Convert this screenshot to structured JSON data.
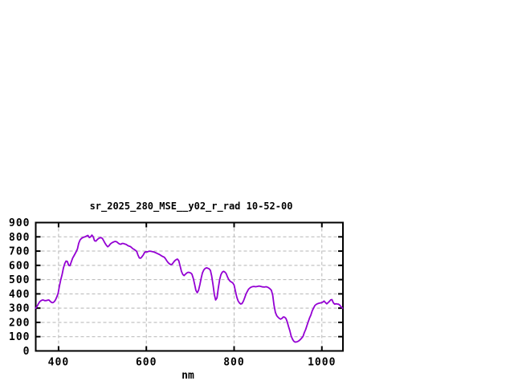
{
  "window": {
    "background": "#ffffff"
  },
  "chart_data": {
    "type": "line",
    "title": "sr_2025_280_MSE__y02_r_rad 10-52-00",
    "xlabel": "nm",
    "xlim": [
      348,
      1048
    ],
    "ylim": [
      0,
      900
    ],
    "xticks": [
      400,
      600,
      800,
      1000
    ],
    "yticks": [
      0,
      100,
      200,
      300,
      400,
      500,
      600,
      700,
      800,
      900
    ],
    "grid": true,
    "legend": "none",
    "axis_color": "#000000",
    "grid_color": "#b5b5b5",
    "line_color": "#9400d3",
    "series": [
      {
        "name": "sr_2025_280_MSE__y02_r_rad",
        "points": [
          [
            348,
            300
          ],
          [
            351,
            312
          ],
          [
            354,
            330
          ],
          [
            357,
            345
          ],
          [
            360,
            352
          ],
          [
            363,
            357
          ],
          [
            366,
            356
          ],
          [
            369,
            352
          ],
          [
            372,
            353
          ],
          [
            375,
            356
          ],
          [
            378,
            357
          ],
          [
            381,
            348
          ],
          [
            384,
            340
          ],
          [
            387,
            338
          ],
          [
            390,
            345
          ],
          [
            393,
            358
          ],
          [
            396,
            378
          ],
          [
            399,
            405
          ],
          [
            402,
            455
          ],
          [
            405,
            498
          ],
          [
            408,
            535
          ],
          [
            411,
            580
          ],
          [
            414,
            612
          ],
          [
            417,
            630
          ],
          [
            420,
            628
          ],
          [
            423,
            600
          ],
          [
            426,
            598
          ],
          [
            429,
            625
          ],
          [
            432,
            650
          ],
          [
            436,
            672
          ],
          [
            440,
            695
          ],
          [
            443,
            715
          ],
          [
            446,
            755
          ],
          [
            449,
            778
          ],
          [
            452,
            788
          ],
          [
            455,
            794
          ],
          [
            458,
            798
          ],
          [
            461,
            801
          ],
          [
            464,
            806
          ],
          [
            467,
            810
          ],
          [
            470,
            795
          ],
          [
            473,
            800
          ],
          [
            476,
            812
          ],
          [
            479,
            800
          ],
          [
            482,
            773
          ],
          [
            485,
            770
          ],
          [
            488,
            780
          ],
          [
            491,
            788
          ],
          [
            494,
            793
          ],
          [
            497,
            794
          ],
          [
            500,
            788
          ],
          [
            503,
            772
          ],
          [
            506,
            755
          ],
          [
            509,
            740
          ],
          [
            512,
            730
          ],
          [
            515,
            738
          ],
          [
            518,
            750
          ],
          [
            521,
            757
          ],
          [
            524,
            762
          ],
          [
            527,
            766
          ],
          [
            530,
            768
          ],
          [
            533,
            764
          ],
          [
            536,
            756
          ],
          [
            539,
            750
          ],
          [
            542,
            748
          ],
          [
            545,
            754
          ],
          [
            548,
            753
          ],
          [
            551,
            750
          ],
          [
            554,
            747
          ],
          [
            557,
            740
          ],
          [
            560,
            736
          ],
          [
            563,
            733
          ],
          [
            566,
            726
          ],
          [
            569,
            717
          ],
          [
            572,
            712
          ],
          [
            575,
            706
          ],
          [
            578,
            698
          ],
          [
            581,
            672
          ],
          [
            584,
            652
          ],
          [
            587,
            650
          ],
          [
            590,
            660
          ],
          [
            593,
            673
          ],
          [
            596,
            690
          ],
          [
            599,
            696
          ],
          [
            602,
            694
          ],
          [
            605,
            698
          ],
          [
            608,
            700
          ],
          [
            611,
            698
          ],
          [
            614,
            696
          ],
          [
            617,
            694
          ],
          [
            620,
            690
          ],
          [
            623,
            686
          ],
          [
            626,
            682
          ],
          [
            629,
            678
          ],
          [
            632,
            672
          ],
          [
            635,
            666
          ],
          [
            638,
            661
          ],
          [
            641,
            657
          ],
          [
            644,
            645
          ],
          [
            647,
            630
          ],
          [
            650,
            618
          ],
          [
            653,
            610
          ],
          [
            656,
            605
          ],
          [
            659,
            608
          ],
          [
            662,
            622
          ],
          [
            665,
            633
          ],
          [
            668,
            640
          ],
          [
            671,
            644
          ],
          [
            674,
            632
          ],
          [
            677,
            595
          ],
          [
            680,
            558
          ],
          [
            683,
            536
          ],
          [
            686,
            528
          ],
          [
            689,
            538
          ],
          [
            692,
            546
          ],
          [
            695,
            551
          ],
          [
            698,
            550
          ],
          [
            701,
            547
          ],
          [
            704,
            538
          ],
          [
            707,
            508
          ],
          [
            710,
            468
          ],
          [
            713,
            425
          ],
          [
            716,
            408
          ],
          [
            719,
            425
          ],
          [
            722,
            465
          ],
          [
            725,
            510
          ],
          [
            728,
            548
          ],
          [
            731,
            568
          ],
          [
            734,
            578
          ],
          [
            737,
            583
          ],
          [
            740,
            580
          ],
          [
            743,
            576
          ],
          [
            746,
            565
          ],
          [
            749,
            525
          ],
          [
            752,
            462
          ],
          [
            755,
            395
          ],
          [
            758,
            357
          ],
          [
            761,
            372
          ],
          [
            764,
            440
          ],
          [
            767,
            500
          ],
          [
            770,
            535
          ],
          [
            773,
            552
          ],
          [
            776,
            558
          ],
          [
            779,
            553
          ],
          [
            782,
            542
          ],
          [
            785,
            518
          ],
          [
            788,
            500
          ],
          [
            791,
            488
          ],
          [
            794,
            483
          ],
          [
            797,
            477
          ],
          [
            800,
            462
          ],
          [
            803,
            420
          ],
          [
            806,
            378
          ],
          [
            809,
            352
          ],
          [
            812,
            337
          ],
          [
            815,
            329
          ],
          [
            818,
            332
          ],
          [
            821,
            348
          ],
          [
            824,
            372
          ],
          [
            827,
            397
          ],
          [
            830,
            417
          ],
          [
            833,
            433
          ],
          [
            837,
            444
          ],
          [
            841,
            450
          ],
          [
            845,
            452
          ],
          [
            849,
            450
          ],
          [
            853,
            452
          ],
          [
            857,
            455
          ],
          [
            861,
            452
          ],
          [
            865,
            449
          ],
          [
            869,
            448
          ],
          [
            873,
            450
          ],
          [
            877,
            446
          ],
          [
            881,
            438
          ],
          [
            885,
            425
          ],
          [
            888,
            390
          ],
          [
            891,
            320
          ],
          [
            894,
            270
          ],
          [
            897,
            248
          ],
          [
            900,
            237
          ],
          [
            903,
            228
          ],
          [
            906,
            223
          ],
          [
            909,
            228
          ],
          [
            912,
            238
          ],
          [
            915,
            237
          ],
          [
            918,
            228
          ],
          [
            921,
            205
          ],
          [
            924,
            172
          ],
          [
            927,
            142
          ],
          [
            930,
            105
          ],
          [
            933,
            82
          ],
          [
            936,
            68
          ],
          [
            939,
            62
          ],
          [
            942,
            63
          ],
          [
            945,
            66
          ],
          [
            948,
            72
          ],
          [
            951,
            80
          ],
          [
            954,
            90
          ],
          [
            957,
            102
          ],
          [
            960,
            128
          ],
          [
            963,
            150
          ],
          [
            966,
            178
          ],
          [
            969,
            205
          ],
          [
            972,
            232
          ],
          [
            975,
            252
          ],
          [
            978,
            282
          ],
          [
            981,
            300
          ],
          [
            984,
            318
          ],
          [
            987,
            326
          ],
          [
            990,
            331
          ],
          [
            993,
            334
          ],
          [
            996,
            336
          ],
          [
            999,
            338
          ],
          [
            1002,
            342
          ],
          [
            1005,
            350
          ],
          [
            1008,
            340
          ],
          [
            1011,
            330
          ],
          [
            1014,
            338
          ],
          [
            1017,
            347
          ],
          [
            1020,
            358
          ],
          [
            1023,
            360
          ],
          [
            1026,
            338
          ],
          [
            1029,
            328
          ],
          [
            1032,
            331
          ],
          [
            1035,
            329
          ],
          [
            1038,
            328
          ],
          [
            1041,
            320
          ],
          [
            1044,
            308
          ],
          [
            1047,
            300
          ]
        ]
      }
    ]
  }
}
